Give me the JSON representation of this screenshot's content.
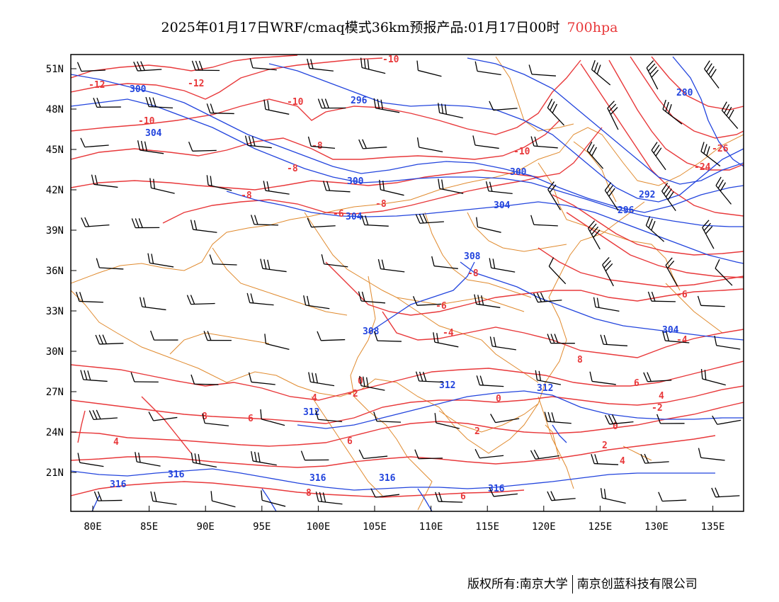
{
  "title": {
    "main": "2025年01月17日WRF/cmaq模式36km预报产品:01月17日00时",
    "level": "700hpa"
  },
  "colors": {
    "temperature": "#e8383a",
    "geopotential": "#2244dd",
    "boundary": "#e08a2e",
    "wind": "#000000"
  },
  "axes": {
    "lon_labels": [
      "80E",
      "85E",
      "90E",
      "95E",
      "100E",
      "105E",
      "110E",
      "115E",
      "120E",
      "125E",
      "130E",
      "135E"
    ],
    "lat_labels": [
      "51N",
      "48N",
      "45N",
      "42N",
      "39N",
      "36N",
      "33N",
      "30N",
      "27N",
      "24N",
      "21N"
    ]
  },
  "contour_labels": {
    "temperature": [
      "-12",
      "-12",
      "-10",
      "-10",
      "-10",
      "-10",
      "-8",
      "-8",
      "-8",
      "-8",
      "-8",
      "-6",
      "-6",
      "-6",
      "-4",
      "-4",
      "-2",
      "-2",
      "0",
      "0",
      "0",
      "2",
      "2",
      "4",
      "4",
      "4",
      "4",
      "6",
      "6",
      "6",
      "6",
      "8",
      "8",
      "8",
      "-24",
      "-26"
    ],
    "geopotential": [
      "300",
      "304",
      "296",
      "300",
      "300",
      "304",
      "304",
      "308",
      "308",
      "312",
      "312",
      "312",
      "316",
      "316",
      "316",
      "316",
      "316",
      "304",
      "292",
      "296",
      "280"
    ]
  },
  "footer": {
    "left": "版权所有:南京大学",
    "right": "南京创蓝科技有限公司"
  }
}
